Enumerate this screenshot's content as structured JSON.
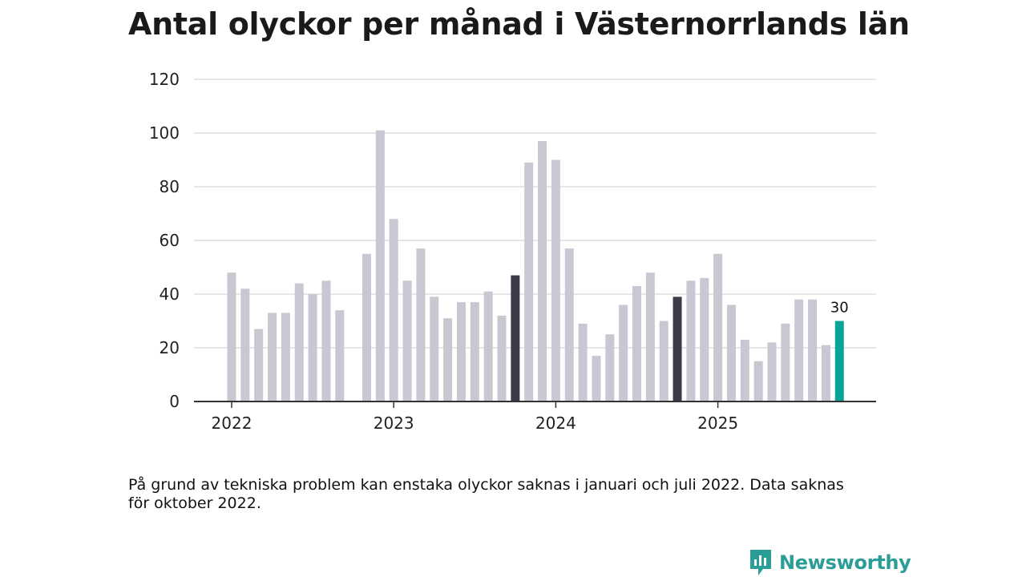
{
  "title": "Antal olyckor per månad i Västernorrlands län",
  "note": "På grund av tekniska problem kan enstaka olyckor saknas i januari och juli 2022. Data saknas för oktober 2022.",
  "brand": "Newsworthy",
  "colors": {
    "bar_default": "#c8c7d2",
    "bar_highlight": "#3c3b4a",
    "bar_current": "#0aa39a",
    "gridline": "#dddddd",
    "axis": "#333333",
    "brand": "#2a9d96"
  },
  "chart_data": {
    "type": "bar",
    "title": "Antal olyckor per månad i Västernorrlands län",
    "xlabel": "",
    "ylabel": "",
    "ylim": [
      0,
      120
    ],
    "yticks": [
      "0",
      "20",
      "40",
      "60",
      "80",
      "100",
      "120"
    ],
    "xticks": [
      {
        "label": "2022",
        "index": 0
      },
      {
        "label": "2023",
        "index": 12
      },
      {
        "label": "2024",
        "index": 24
      },
      {
        "label": "2025",
        "index": 36
      }
    ],
    "categories": [
      "2022-01",
      "2022-02",
      "2022-03",
      "2022-04",
      "2022-05",
      "2022-06",
      "2022-07",
      "2022-08",
      "2022-09",
      "2022-10",
      "2022-11",
      "2022-12",
      "2023-01",
      "2023-02",
      "2023-03",
      "2023-04",
      "2023-05",
      "2023-06",
      "2023-07",
      "2023-08",
      "2023-09",
      "2023-10",
      "2023-11",
      "2023-12",
      "2024-01",
      "2024-02",
      "2024-03",
      "2024-04",
      "2024-05",
      "2024-06",
      "2024-07",
      "2024-08",
      "2024-09",
      "2024-10",
      "2024-11",
      "2024-12",
      "2025-01",
      "2025-02",
      "2025-03",
      "2025-04",
      "2025-05",
      "2025-06",
      "2025-07",
      "2025-08",
      "2025-09",
      "2025-10"
    ],
    "values": [
      48,
      42,
      27,
      33,
      33,
      44,
      40,
      45,
      34,
      null,
      55,
      101,
      68,
      45,
      57,
      39,
      31,
      37,
      37,
      41,
      32,
      47,
      89,
      97,
      90,
      57,
      29,
      17,
      25,
      36,
      43,
      48,
      30,
      39,
      45,
      46,
      55,
      36,
      23,
      15,
      22,
      29,
      38,
      38,
      21,
      30
    ],
    "highlight": [
      "2023-10",
      "2024-10"
    ],
    "current": "2025-10",
    "data_labels": [
      {
        "category": "2025-10",
        "text": "30"
      }
    ]
  }
}
